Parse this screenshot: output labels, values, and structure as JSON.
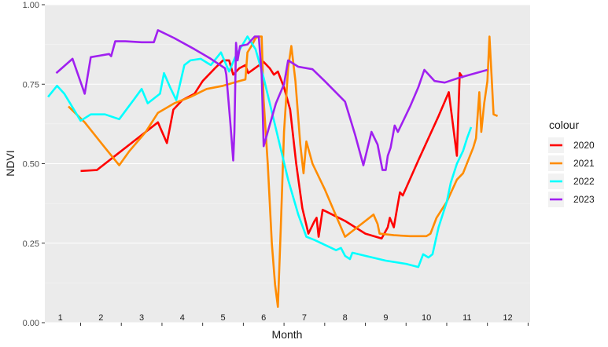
{
  "chart_data": {
    "type": "line",
    "xlabel": "Month",
    "ylabel": "NDVI",
    "xlim": [
      0.62,
      12.55
    ],
    "ylim": [
      0,
      1
    ],
    "yticks": [
      0.0,
      0.25,
      0.5,
      0.75,
      1.0
    ],
    "ytick_labels": [
      "0.00",
      "0.25",
      "0.50",
      "0.75",
      "1.00"
    ],
    "month_labels": [
      "1",
      "2",
      "3",
      "4",
      "5",
      "6",
      "7",
      "8",
      "9",
      "10",
      "11",
      "12"
    ],
    "legend_title": "colour",
    "legend_position": "right",
    "grid": true,
    "series": [
      {
        "name": "2020",
        "color": "#ff0000",
        "points": [
          [
            1.5,
            0.477
          ],
          [
            1.9,
            0.48
          ],
          [
            2.4,
            0.53
          ],
          [
            2.9,
            0.58
          ],
          [
            3.4,
            0.63
          ],
          [
            3.62,
            0.565
          ],
          [
            3.78,
            0.67
          ],
          [
            4.0,
            0.7
          ],
          [
            4.3,
            0.72
          ],
          [
            4.5,
            0.76
          ],
          [
            4.8,
            0.8
          ],
          [
            5.0,
            0.825
          ],
          [
            5.15,
            0.825
          ],
          [
            5.25,
            0.78
          ],
          [
            5.4,
            0.8
          ],
          [
            5.55,
            0.81
          ],
          [
            5.62,
            0.785
          ],
          [
            6.0,
            0.82
          ],
          [
            6.15,
            0.8
          ],
          [
            6.25,
            0.78
          ],
          [
            6.35,
            0.79
          ],
          [
            6.5,
            0.74
          ],
          [
            6.65,
            0.67
          ],
          [
            6.8,
            0.5
          ],
          [
            6.95,
            0.36
          ],
          [
            7.1,
            0.28
          ],
          [
            7.25,
            0.32
          ],
          [
            7.3,
            0.33
          ],
          [
            7.35,
            0.27
          ],
          [
            7.45,
            0.355
          ],
          [
            8.0,
            0.32
          ],
          [
            8.5,
            0.28
          ],
          [
            8.9,
            0.265
          ],
          [
            9.05,
            0.3
          ],
          [
            9.1,
            0.33
          ],
          [
            9.2,
            0.3
          ],
          [
            9.28,
            0.36
          ],
          [
            9.35,
            0.41
          ],
          [
            9.42,
            0.4
          ],
          [
            9.8,
            0.51
          ],
          [
            10.3,
            0.65
          ],
          [
            10.55,
            0.725
          ],
          [
            10.75,
            0.525
          ],
          [
            10.82,
            0.785
          ],
          [
            10.9,
            0.77
          ]
        ]
      },
      {
        "name": "2021",
        "color": "#ff8c00",
        "points": [
          [
            1.2,
            0.68
          ],
          [
            1.6,
            0.63
          ],
          [
            2.1,
            0.55
          ],
          [
            2.45,
            0.495
          ],
          [
            2.7,
            0.54
          ],
          [
            3.1,
            0.6
          ],
          [
            3.4,
            0.66
          ],
          [
            3.8,
            0.69
          ],
          [
            4.2,
            0.71
          ],
          [
            4.6,
            0.735
          ],
          [
            5.0,
            0.745
          ],
          [
            5.4,
            0.76
          ],
          [
            5.55,
            0.765
          ],
          [
            5.6,
            0.85
          ],
          [
            5.7,
            0.87
          ],
          [
            5.8,
            0.895
          ],
          [
            5.88,
            0.9
          ],
          [
            5.95,
            0.9
          ],
          [
            6.0,
            0.7
          ],
          [
            6.1,
            0.5
          ],
          [
            6.2,
            0.25
          ],
          [
            6.28,
            0.12
          ],
          [
            6.35,
            0.05
          ],
          [
            6.42,
            0.3
          ],
          [
            6.5,
            0.6
          ],
          [
            6.6,
            0.8
          ],
          [
            6.68,
            0.87
          ],
          [
            6.78,
            0.76
          ],
          [
            6.9,
            0.56
          ],
          [
            6.98,
            0.47
          ],
          [
            7.05,
            0.57
          ],
          [
            7.2,
            0.5
          ],
          [
            7.5,
            0.42
          ],
          [
            7.8,
            0.33
          ],
          [
            8.0,
            0.27
          ],
          [
            8.3,
            0.3
          ],
          [
            8.7,
            0.34
          ],
          [
            8.8,
            0.31
          ],
          [
            8.85,
            0.28
          ],
          [
            9.2,
            0.275
          ],
          [
            9.6,
            0.272
          ],
          [
            10.0,
            0.272
          ],
          [
            10.1,
            0.28
          ],
          [
            10.25,
            0.33
          ],
          [
            10.5,
            0.38
          ],
          [
            10.75,
            0.45
          ],
          [
            10.9,
            0.47
          ],
          [
            11.15,
            0.55
          ],
          [
            11.22,
            0.58
          ],
          [
            11.3,
            0.725
          ],
          [
            11.35,
            0.6
          ],
          [
            11.42,
            0.69
          ],
          [
            11.5,
            0.76
          ],
          [
            11.55,
            0.9
          ],
          [
            11.6,
            0.78
          ],
          [
            11.65,
            0.655
          ],
          [
            11.75,
            0.65
          ]
        ]
      },
      {
        "name": "2022",
        "color": "#00ffff",
        "points": [
          [
            0.7,
            0.71
          ],
          [
            0.92,
            0.745
          ],
          [
            1.1,
            0.72
          ],
          [
            1.5,
            0.635
          ],
          [
            1.75,
            0.655
          ],
          [
            2.1,
            0.655
          ],
          [
            2.45,
            0.64
          ],
          [
            2.8,
            0.7
          ],
          [
            3.0,
            0.735
          ],
          [
            3.15,
            0.69
          ],
          [
            3.3,
            0.705
          ],
          [
            3.45,
            0.72
          ],
          [
            3.55,
            0.785
          ],
          [
            3.7,
            0.74
          ],
          [
            3.85,
            0.7
          ],
          [
            4.05,
            0.81
          ],
          [
            4.2,
            0.825
          ],
          [
            4.45,
            0.83
          ],
          [
            4.7,
            0.81
          ],
          [
            4.95,
            0.85
          ],
          [
            5.15,
            0.79
          ],
          [
            5.3,
            0.835
          ],
          [
            5.6,
            0.9
          ],
          [
            5.8,
            0.86
          ],
          [
            6.0,
            0.77
          ],
          [
            6.3,
            0.61
          ],
          [
            6.6,
            0.45
          ],
          [
            6.85,
            0.34
          ],
          [
            7.05,
            0.27
          ],
          [
            7.25,
            0.26
          ],
          [
            7.5,
            0.245
          ],
          [
            7.78,
            0.228
          ],
          [
            7.9,
            0.235
          ],
          [
            8.0,
            0.21
          ],
          [
            8.12,
            0.2
          ],
          [
            8.18,
            0.22
          ],
          [
            8.5,
            0.21
          ],
          [
            9.0,
            0.195
          ],
          [
            9.5,
            0.185
          ],
          [
            9.8,
            0.175
          ],
          [
            9.92,
            0.215
          ],
          [
            10.05,
            0.205
          ],
          [
            10.15,
            0.215
          ],
          [
            10.3,
            0.3
          ],
          [
            10.5,
            0.38
          ],
          [
            10.6,
            0.44
          ],
          [
            10.75,
            0.5
          ],
          [
            10.9,
            0.54
          ],
          [
            11.0,
            0.58
          ],
          [
            11.1,
            0.615
          ]
        ]
      },
      {
        "name": "2023",
        "color": "#a020f0",
        "points": [
          [
            0.9,
            0.785
          ],
          [
            1.3,
            0.83
          ],
          [
            1.6,
            0.72
          ],
          [
            1.75,
            0.835
          ],
          [
            2.2,
            0.845
          ],
          [
            2.25,
            0.838
          ],
          [
            2.35,
            0.885
          ],
          [
            2.6,
            0.885
          ],
          [
            3.0,
            0.882
          ],
          [
            3.3,
            0.882
          ],
          [
            3.4,
            0.92
          ],
          [
            3.8,
            0.895
          ],
          [
            4.3,
            0.86
          ],
          [
            4.7,
            0.83
          ],
          [
            5.05,
            0.8
          ],
          [
            5.08,
            0.78
          ],
          [
            5.18,
            0.63
          ],
          [
            5.25,
            0.51
          ],
          [
            5.28,
            0.6
          ],
          [
            5.32,
            0.88
          ],
          [
            5.36,
            0.825
          ],
          [
            5.42,
            0.87
          ],
          [
            5.6,
            0.875
          ],
          [
            5.78,
            0.9
          ],
          [
            5.88,
            0.9
          ],
          [
            5.95,
            0.78
          ],
          [
            6.0,
            0.555
          ],
          [
            6.1,
            0.6
          ],
          [
            6.3,
            0.69
          ],
          [
            6.5,
            0.75
          ],
          [
            6.6,
            0.825
          ],
          [
            6.85,
            0.805
          ],
          [
            7.2,
            0.797
          ],
          [
            7.5,
            0.76
          ],
          [
            8.0,
            0.695
          ],
          [
            8.25,
            0.59
          ],
          [
            8.45,
            0.495
          ],
          [
            8.65,
            0.6
          ],
          [
            8.8,
            0.56
          ],
          [
            8.92,
            0.48
          ],
          [
            9.0,
            0.48
          ],
          [
            9.05,
            0.525
          ],
          [
            9.12,
            0.55
          ],
          [
            9.22,
            0.62
          ],
          [
            9.3,
            0.6
          ],
          [
            9.6,
            0.68
          ],
          [
            9.8,
            0.74
          ],
          [
            9.95,
            0.795
          ],
          [
            10.2,
            0.76
          ],
          [
            10.45,
            0.755
          ],
          [
            10.8,
            0.77
          ],
          [
            11.5,
            0.795
          ]
        ]
      }
    ]
  }
}
